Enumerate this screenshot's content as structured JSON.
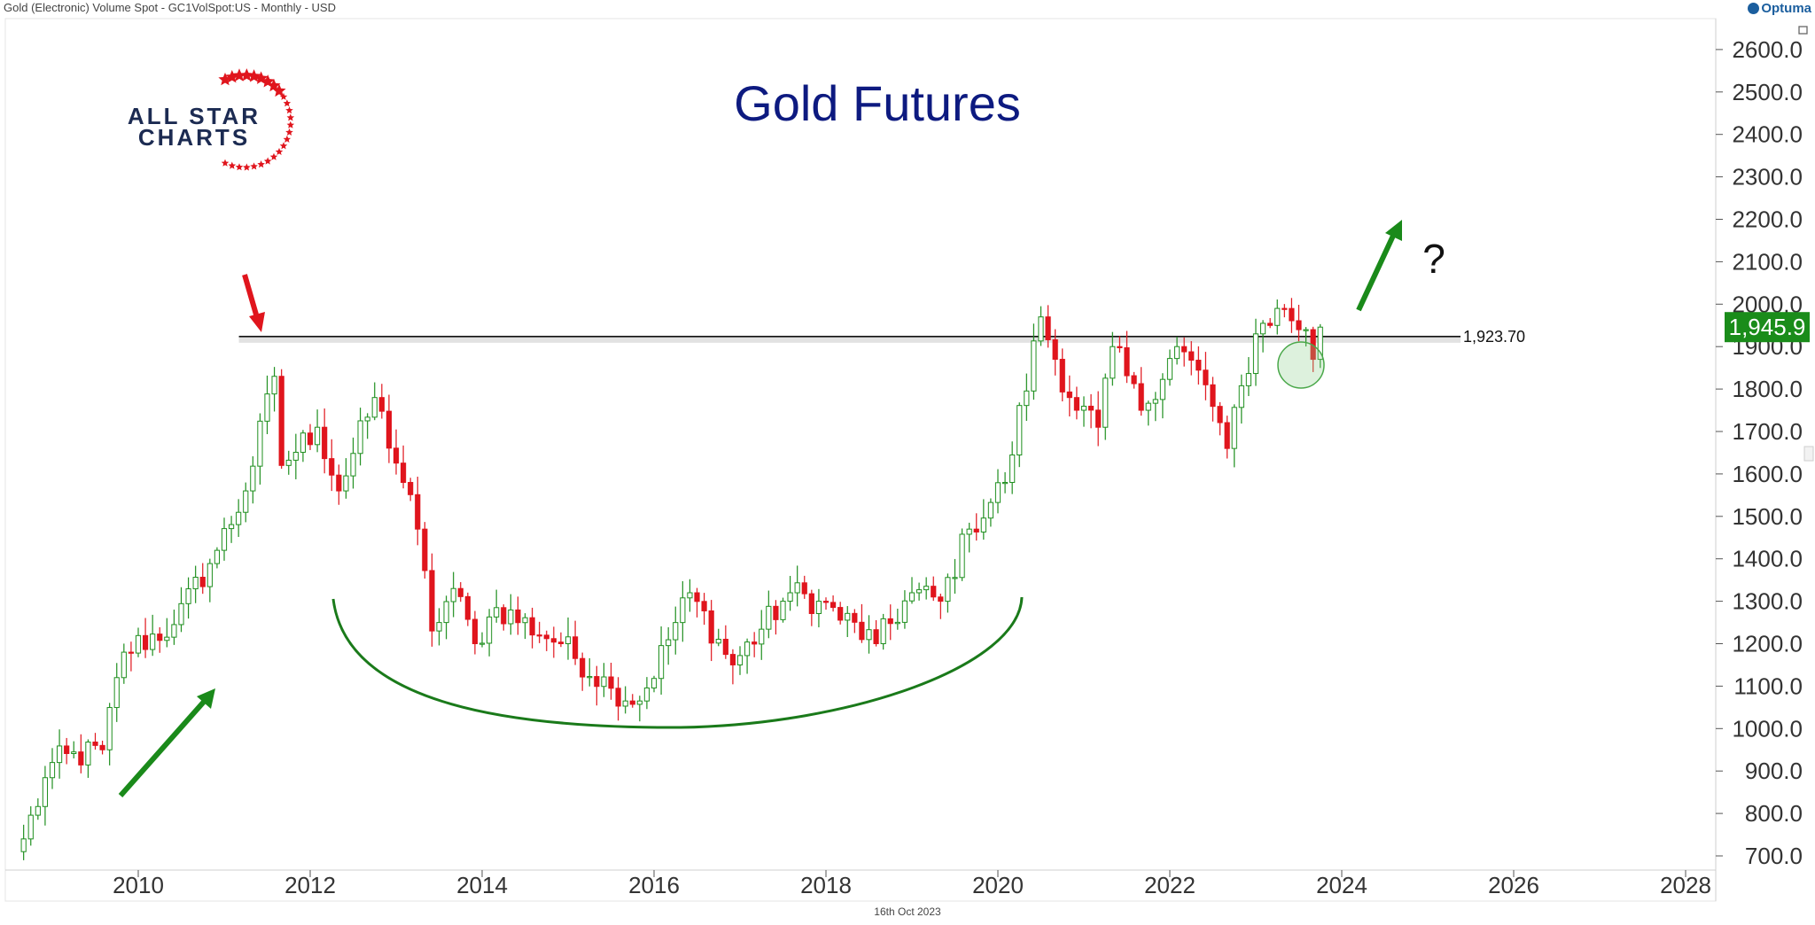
{
  "header": {
    "symbol_line": "Gold (Electronic) Volume Spot - GC1VolSpot:US - Monthly - USD"
  },
  "brand": {
    "name": "Optuma"
  },
  "footer": {
    "date": "16th Oct 2023"
  },
  "logo": {
    "line1": "ALL STAR",
    "line2": "CHARTS"
  },
  "colors": {
    "up": "#1f8f1f",
    "down": "#e0151d",
    "title": "#0d1a80",
    "price_tag": "#1a8c1a",
    "annotation_green": "#1a8a1a",
    "annotation_red": "#e0151d"
  },
  "annotations": {
    "question": "?"
  },
  "chart_data": {
    "type": "candlestick",
    "title": "Gold Futures",
    "frequency": "Monthly",
    "currency": "USD",
    "x_tick_labels": [
      "2010",
      "2012",
      "2014",
      "2016",
      "2018",
      "2020",
      "2022",
      "2024",
      "2026",
      "2028"
    ],
    "y_tick_labels": [
      "700.0",
      "800.0",
      "900.0",
      "1000.0",
      "1100.0",
      "1200.0",
      "1300.0",
      "1400.0",
      "1500.0",
      "1600.0",
      "1700.0",
      "1800.0",
      "1900.0",
      "2000.0",
      "2100.0",
      "2200.0",
      "2300.0",
      "2400.0",
      "2500.0",
      "2600.0"
    ],
    "xlim": [
      "2008-08",
      "2028-07"
    ],
    "ylim": [
      680,
      2680
    ],
    "grid": false,
    "last_price": "1,945.9",
    "resistance": {
      "value": 1923.7,
      "label": "1,923.70",
      "from": "2011-08"
    },
    "anchors": [
      {
        "date": "2008-09",
        "close": 740
      },
      {
        "date": "2009-01",
        "close": 920
      },
      {
        "date": "2009-08",
        "close": 950
      },
      {
        "date": "2009-11",
        "close": 1180
      },
      {
        "date": "2010-06",
        "close": 1245
      },
      {
        "date": "2010-12",
        "close": 1420
      },
      {
        "date": "2011-04",
        "close": 1560
      },
      {
        "date": "2011-08",
        "close": 1830
      },
      {
        "date": "2011-09",
        "close": 1620
      },
      {
        "date": "2012-02",
        "close": 1710
      },
      {
        "date": "2012-05",
        "close": 1560
      },
      {
        "date": "2012-10",
        "close": 1780
      },
      {
        "date": "2013-02",
        "close": 1580
      },
      {
        "date": "2013-04",
        "close": 1470
      },
      {
        "date": "2013-06",
        "close": 1230
      },
      {
        "date": "2013-09",
        "close": 1330
      },
      {
        "date": "2013-12",
        "close": 1200
      },
      {
        "date": "2014-03",
        "close": 1285
      },
      {
        "date": "2014-12",
        "close": 1200
      },
      {
        "date": "2015-07",
        "close": 1095
      },
      {
        "date": "2015-11",
        "close": 1065
      },
      {
        "date": "2016-06",
        "close": 1320
      },
      {
        "date": "2016-12",
        "close": 1150
      },
      {
        "date": "2017-08",
        "close": 1320
      },
      {
        "date": "2017-12",
        "close": 1300
      },
      {
        "date": "2018-08",
        "close": 1200
      },
      {
        "date": "2019-01",
        "close": 1320
      },
      {
        "date": "2019-05",
        "close": 1300
      },
      {
        "date": "2019-09",
        "close": 1470
      },
      {
        "date": "2020-02",
        "close": 1580
      },
      {
        "date": "2020-07",
        "close": 1970
      },
      {
        "date": "2020-11",
        "close": 1780
      },
      {
        "date": "2021-03",
        "close": 1710
      },
      {
        "date": "2021-05",
        "close": 1900
      },
      {
        "date": "2021-09",
        "close": 1750
      },
      {
        "date": "2022-02",
        "close": 1900
      },
      {
        "date": "2022-06",
        "close": 1810
      },
      {
        "date": "2022-09",
        "close": 1660
      },
      {
        "date": "2023-01",
        "close": 1930
      },
      {
        "date": "2023-04",
        "close": 1990
      },
      {
        "date": "2023-08",
        "close": 1940
      },
      {
        "date": "2023-09",
        "close": 1870
      },
      {
        "date": "2023-10",
        "close": 1945.9
      }
    ]
  }
}
